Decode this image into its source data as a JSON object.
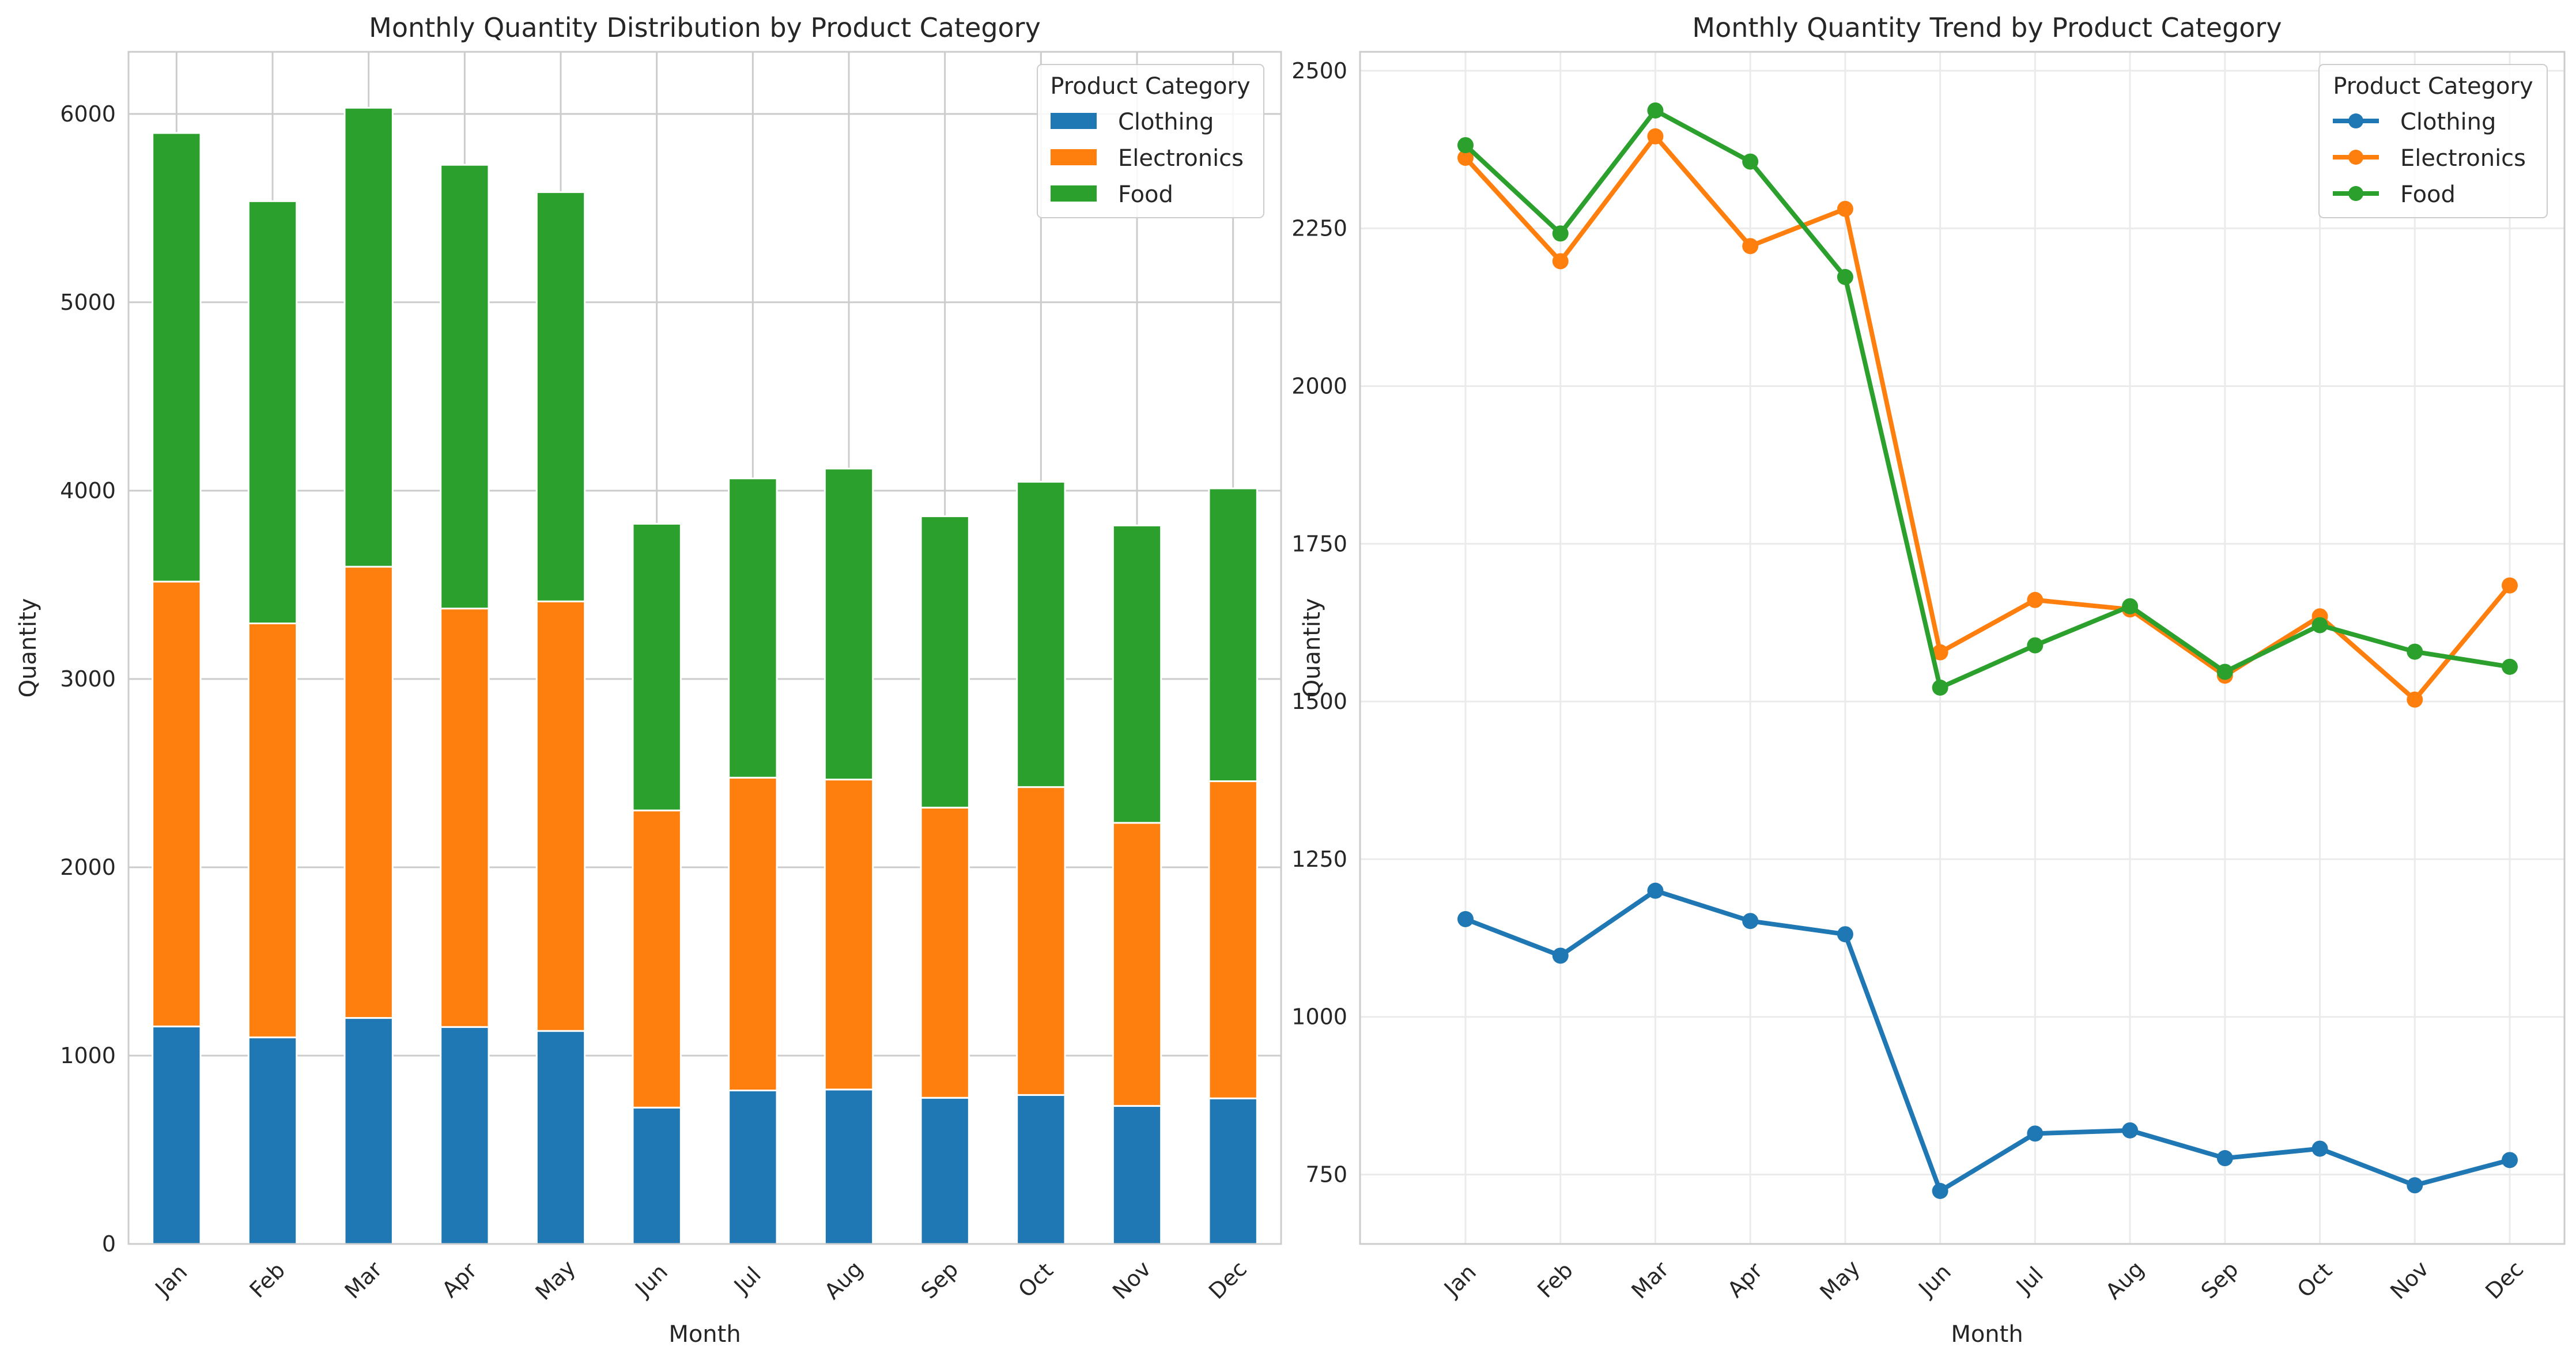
{
  "colors": {
    "clothing": "#1f77b4",
    "electronics": "#ff7f0e",
    "food": "#2ca02c",
    "grid": "#cccccc",
    "grid_light": "#ebebeb",
    "frame": "#cccccc"
  },
  "chart_data": [
    {
      "type": "bar",
      "stacked": true,
      "title": "Monthly Quantity Distribution by Product Category",
      "xlabel": "Month",
      "ylabel": "Quantity",
      "ylim": [
        0,
        6330
      ],
      "yticks": [
        0,
        1000,
        2000,
        3000,
        4000,
        5000,
        6000
      ],
      "grid": true,
      "legend_title": "Product Category",
      "legend_position": "top-right",
      "categories": [
        "Jan",
        "Feb",
        "Mar",
        "Apr",
        "May",
        "Jun",
        "Jul",
        "Aug",
        "Sep",
        "Oct",
        "Nov",
        "Dec"
      ],
      "series": [
        {
          "name": "Clothing",
          "color": "#1f77b4",
          "values": [
            1155,
            1097,
            1200,
            1152,
            1131,
            724,
            815,
            820,
            776,
            791,
            733,
            773
          ]
        },
        {
          "name": "Electronics",
          "color": "#ff7f0e",
          "values": [
            2362,
            2198,
            2396,
            2222,
            2281,
            1578,
            1661,
            1646,
            1541,
            1635,
            1503,
            1684
          ]
        },
        {
          "name": "Food",
          "color": "#2ca02c",
          "values": [
            2382,
            2242,
            2437,
            2356,
            2173,
            1522,
            1589,
            1651,
            1547,
            1621,
            1579,
            1555
          ]
        }
      ]
    },
    {
      "type": "line",
      "title": "Monthly Quantity Trend by Product Category",
      "xlabel": "Month",
      "ylabel": "Quantity",
      "ylim": [
        640,
        2530
      ],
      "yticks": [
        750,
        1000,
        1250,
        1500,
        1750,
        2000,
        2250,
        2500
      ],
      "grid": true,
      "legend_title": "Product Category",
      "legend_position": "top-right",
      "categories": [
        "Jan",
        "Feb",
        "Mar",
        "Apr",
        "May",
        "Jun",
        "Jul",
        "Aug",
        "Sep",
        "Oct",
        "Nov",
        "Dec"
      ],
      "series": [
        {
          "name": "Clothing",
          "color": "#1f77b4",
          "values": [
            1155,
            1097,
            1200,
            1152,
            1131,
            724,
            815,
            820,
            776,
            791,
            733,
            773
          ]
        },
        {
          "name": "Electronics",
          "color": "#ff7f0e",
          "values": [
            2362,
            2198,
            2396,
            2222,
            2281,
            1578,
            1661,
            1646,
            1541,
            1635,
            1503,
            1684
          ]
        },
        {
          "name": "Food",
          "color": "#2ca02c",
          "values": [
            2382,
            2242,
            2437,
            2356,
            2173,
            1522,
            1589,
            1651,
            1547,
            1621,
            1579,
            1555
          ]
        }
      ]
    }
  ]
}
